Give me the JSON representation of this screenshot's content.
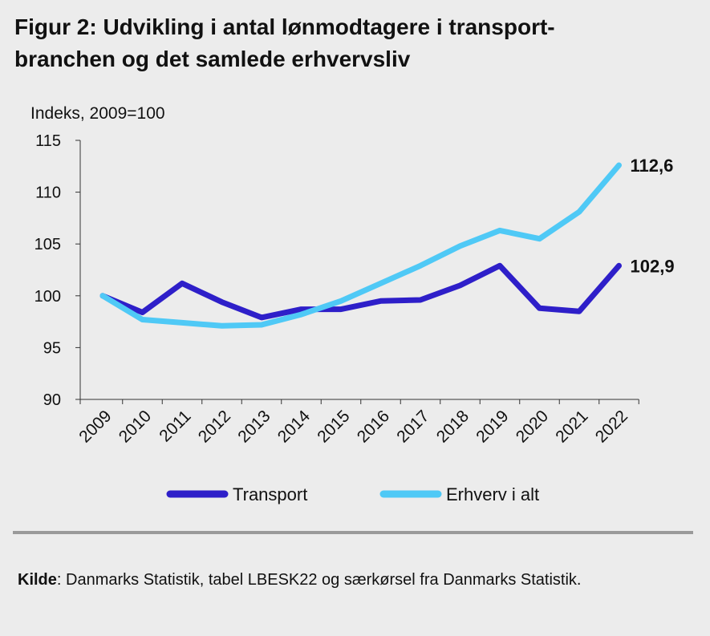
{
  "title": {
    "line1": "Figur 2: Udvikling i antal lønmodtagere i transport-",
    "line2": "branchen og det samlede erhvervsliv"
  },
  "source": {
    "label": "Kilde",
    "text": ": Danmarks Statistik, tabel LBESK22 og særkørsel fra Danmarks Statistik."
  },
  "chart_data": {
    "type": "line",
    "ylabel": "Indeks, 2009=100",
    "xlabel": "",
    "ylim": [
      90,
      115
    ],
    "yticks": [
      90,
      95,
      100,
      105,
      110,
      115
    ],
    "categories": [
      "2009",
      "2010",
      "2011",
      "2012",
      "2013",
      "2014",
      "2015",
      "2016",
      "2017",
      "2018",
      "2019",
      "2020",
      "2021",
      "2022"
    ],
    "series": [
      {
        "name": "Transport",
        "color": "#2e1fc9",
        "values": [
          100,
          98.4,
          101.2,
          99.4,
          97.9,
          98.7,
          98.7,
          99.5,
          99.6,
          101.0,
          102.9,
          98.8,
          98.5,
          102.9
        ],
        "end_label": "102,9"
      },
      {
        "name": "Erhverv i alt",
        "color": "#4fc9f6",
        "values": [
          100,
          97.7,
          97.4,
          97.1,
          97.2,
          98.2,
          99.5,
          101.2,
          102.9,
          104.8,
          106.3,
          105.5,
          108.1,
          112.6
        ],
        "end_label": "112,6"
      }
    ],
    "grid": false,
    "legend": "bottom"
  }
}
